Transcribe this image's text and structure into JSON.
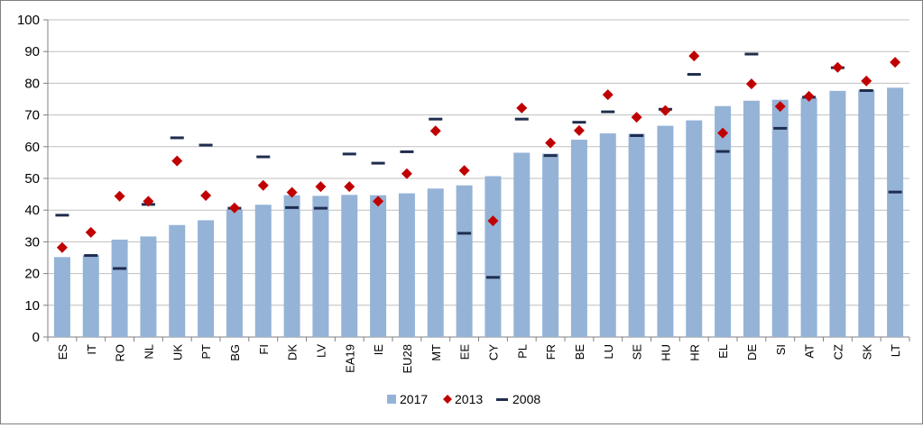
{
  "chart_data": {
    "type": "bar",
    "title": "",
    "xlabel": "",
    "ylabel": "",
    "ylim": [
      0,
      100
    ],
    "yticks": [
      0,
      10,
      20,
      30,
      40,
      50,
      60,
      70,
      80,
      90,
      100
    ],
    "grid": true,
    "legend_position": "bottom",
    "categories": [
      "ES",
      "IT",
      "RO",
      "NL",
      "UK",
      "PT",
      "BG",
      "FI",
      "DK",
      "LV",
      "EA19",
      "IE",
      "EU28",
      "MT",
      "EE",
      "CY",
      "PL",
      "FR",
      "BE",
      "LU",
      "SE",
      "HU",
      "HR",
      "EL",
      "DE",
      "SI",
      "AT",
      "CZ",
      "SK",
      "LT"
    ],
    "series": [
      {
        "name": "2017",
        "kind": "bar",
        "color": "#95b3d7",
        "values": [
          25.2,
          25.8,
          30.7,
          31.7,
          35.3,
          36.8,
          40.2,
          41.7,
          44.7,
          44.5,
          44.8,
          44.7,
          45.3,
          46.8,
          47.8,
          50.7,
          58.1,
          57.8,
          62.2,
          64.2,
          64.1,
          66.6,
          68.3,
          72.8,
          74.5,
          74.8,
          75.4,
          77.6,
          77.9,
          78.6
        ]
      },
      {
        "name": "2013",
        "kind": "diamond",
        "color": "#c00000",
        "values": [
          28.2,
          33.0,
          44.4,
          42.8,
          55.5,
          44.6,
          40.7,
          47.8,
          45.6,
          47.4,
          47.4,
          42.8,
          51.5,
          65.0,
          52.5,
          36.6,
          72.2,
          61.2,
          65.1,
          76.4,
          69.3,
          71.4,
          88.6,
          64.3,
          79.8,
          72.7,
          75.9,
          85.0,
          80.7,
          86.6
        ]
      },
      {
        "name": "2008",
        "kind": "dash",
        "color": "#1f2d4d",
        "values": [
          38.4,
          25.7,
          21.6,
          41.8,
          62.8,
          60.5,
          40.6,
          56.8,
          40.8,
          40.6,
          57.7,
          54.8,
          58.4,
          68.7,
          32.7,
          18.8,
          68.7,
          57.2,
          67.7,
          71.0,
          63.5,
          71.8,
          82.8,
          58.5,
          89.2,
          65.8,
          75.6,
          84.9,
          77.7,
          45.7
        ]
      }
    ]
  }
}
